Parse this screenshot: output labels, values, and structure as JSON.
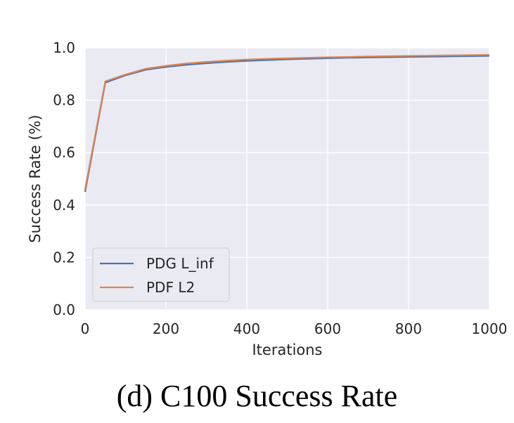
{
  "caption": "(d) C100 Success Rate",
  "chart_data": {
    "type": "line",
    "title": "",
    "xlabel": "Iterations",
    "ylabel": "Success Rate (%)",
    "xlim": [
      0,
      1000
    ],
    "ylim": [
      0.0,
      1.0
    ],
    "xticks": [
      0,
      200,
      400,
      600,
      800,
      1000
    ],
    "xtick_labels": [
      "0",
      "200",
      "400",
      "600",
      "800",
      "1000"
    ],
    "yticks": [
      0.0,
      0.2,
      0.4,
      0.6,
      0.8,
      1.0
    ],
    "ytick_labels": [
      "0.0",
      "0.2",
      "0.4",
      "0.6",
      "0.8",
      "1.0"
    ],
    "grid": true,
    "legend_position": "bottom-left",
    "x": [
      0,
      50,
      100,
      150,
      200,
      250,
      300,
      350,
      400,
      450,
      500,
      550,
      600,
      650,
      700,
      750,
      800,
      850,
      900,
      950,
      1000
    ],
    "series": [
      {
        "name": "PDG L_inf",
        "color": "#4c72b0",
        "values": [
          0.45,
          0.867,
          0.895,
          0.916,
          0.927,
          0.935,
          0.941,
          0.946,
          0.95,
          0.953,
          0.956,
          0.958,
          0.96,
          0.962,
          0.963,
          0.964,
          0.965,
          0.966,
          0.967,
          0.968,
          0.969
        ]
      },
      {
        "name": "PDF L2",
        "color": "#dd8452",
        "values": [
          0.46,
          0.872,
          0.898,
          0.92,
          0.931,
          0.94,
          0.946,
          0.951,
          0.955,
          0.958,
          0.96,
          0.962,
          0.964,
          0.965,
          0.967,
          0.968,
          0.969,
          0.97,
          0.971,
          0.972,
          0.973
        ]
      }
    ]
  }
}
